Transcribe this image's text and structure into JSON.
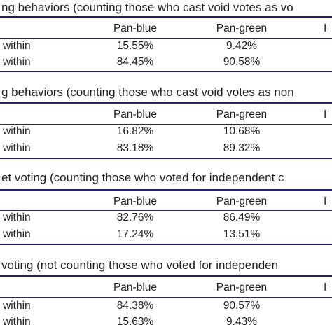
{
  "panels": [
    {
      "title": "ng behaviors (counting those who cast void votes as vo",
      "headers": [
        "Pan-blue",
        "Pan-green",
        "I"
      ],
      "rows": [
        {
          "label": "within",
          "values": [
            "15.55%",
            "9.42%"
          ]
        },
        {
          "label": "within",
          "values": [
            "84.45%",
            "90.58%"
          ]
        }
      ]
    },
    {
      "title": "g behaviors (counting those who cast void votes as non",
      "headers": [
        "Pan-blue",
        "Pan-green",
        "I"
      ],
      "rows": [
        {
          "label": "within",
          "values": [
            "16.82%",
            "10.68%"
          ]
        },
        {
          "label": "within",
          "values": [
            "83.18%",
            "89.32%"
          ]
        }
      ]
    },
    {
      "title": "et voting (counting those who voted for independent c",
      "headers": [
        "Pan-blue",
        "Pan-green",
        "I"
      ],
      "rows": [
        {
          "label": "within",
          "values": [
            "82.76%",
            "86.49%"
          ]
        },
        {
          "label": "within",
          "values": [
            "17.24%",
            "13.51%"
          ]
        }
      ]
    },
    {
      "title": "voting (not counting those who voted for independen",
      "headers": [
        "Pan-blue",
        "Pan-green",
        "I"
      ],
      "rows": [
        {
          "label": "within",
          "values": [
            "84.38%",
            "90.57%"
          ]
        },
        {
          "label": "within",
          "values": [
            "15.63%",
            "9.43%"
          ]
        }
      ]
    }
  ]
}
